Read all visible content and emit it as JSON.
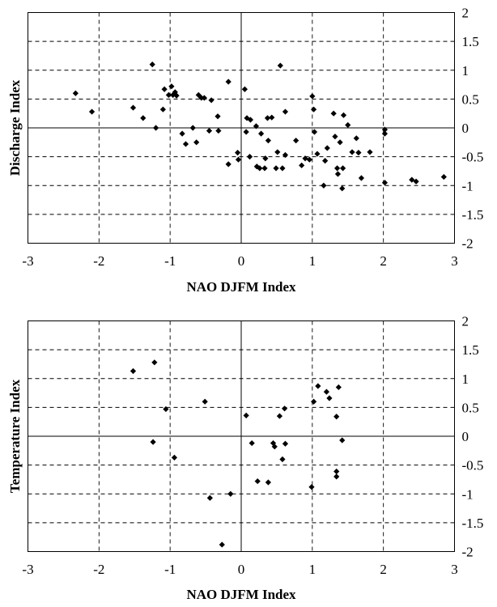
{
  "chart_data": [
    {
      "type": "scatter",
      "xlabel": "NAO DJFM Index",
      "ylabel": "Discharge Index",
      "xlim": [
        -3,
        3
      ],
      "ylim": [
        -2,
        2
      ],
      "xticks": [
        "-3",
        "-2",
        "-1",
        "0",
        "1",
        "2",
        "3"
      ],
      "yticks": [
        "2",
        "1.5",
        "1",
        "0.5",
        "0",
        "-0.5",
        "-1",
        "-1.5",
        "-2"
      ],
      "grid": "dashed",
      "marker": "diamond",
      "points": [
        [
          -2.33,
          0.6
        ],
        [
          -2.1,
          0.28
        ],
        [
          -1.52,
          0.35
        ],
        [
          -1.38,
          0.17
        ],
        [
          -1.25,
          1.1
        ],
        [
          -1.2,
          0.0
        ],
        [
          -1.1,
          0.32
        ],
        [
          -1.08,
          0.67
        ],
        [
          -1.02,
          0.57
        ],
        [
          -0.98,
          0.72
        ],
        [
          -0.96,
          0.57
        ],
        [
          -0.93,
          0.62
        ],
        [
          -0.91,
          0.56
        ],
        [
          -0.83,
          -0.1
        ],
        [
          -0.78,
          -0.28
        ],
        [
          -0.68,
          0.0
        ],
        [
          -0.63,
          -0.25
        ],
        [
          -0.6,
          0.57
        ],
        [
          -0.56,
          0.52
        ],
        [
          -0.52,
          0.52
        ],
        [
          -0.45,
          -0.05
        ],
        [
          -0.42,
          0.48
        ],
        [
          -0.33,
          0.2
        ],
        [
          -0.32,
          -0.05
        ],
        [
          -0.18,
          0.8
        ],
        [
          -0.18,
          -0.63
        ],
        [
          -0.05,
          -0.43
        ],
        [
          -0.04,
          -0.55
        ],
        [
          0.05,
          0.67
        ],
        [
          0.07,
          -0.07
        ],
        [
          0.08,
          0.17
        ],
        [
          0.12,
          -0.5
        ],
        [
          0.13,
          0.14
        ],
        [
          0.21,
          0.03
        ],
        [
          0.22,
          -0.67
        ],
        [
          0.26,
          -0.7
        ],
        [
          0.28,
          -0.1
        ],
        [
          0.33,
          -0.7
        ],
        [
          0.34,
          -0.53
        ],
        [
          0.37,
          0.17
        ],
        [
          0.38,
          -0.22
        ],
        [
          0.43,
          0.18
        ],
        [
          0.49,
          -0.7
        ],
        [
          0.51,
          -0.42
        ],
        [
          0.55,
          1.08
        ],
        [
          0.58,
          -0.7
        ],
        [
          0.62,
          -0.47
        ],
        [
          0.62,
          0.28
        ],
        [
          0.77,
          -0.22
        ],
        [
          0.85,
          -0.65
        ],
        [
          0.9,
          -0.53
        ],
        [
          0.96,
          -0.55
        ],
        [
          1.0,
          0.55
        ],
        [
          1.02,
          0.32
        ],
        [
          1.03,
          -0.07
        ],
        [
          1.07,
          -0.45
        ],
        [
          1.16,
          -1.0
        ],
        [
          1.18,
          -0.57
        ],
        [
          1.21,
          -0.35
        ],
        [
          1.3,
          0.25
        ],
        [
          1.32,
          -0.15
        ],
        [
          1.35,
          -0.7
        ],
        [
          1.36,
          -0.8
        ],
        [
          1.39,
          -0.25
        ],
        [
          1.42,
          -1.05
        ],
        [
          1.43,
          -0.7
        ],
        [
          1.44,
          0.22
        ],
        [
          1.5,
          0.05
        ],
        [
          1.56,
          -0.42
        ],
        [
          1.62,
          -0.18
        ],
        [
          1.65,
          -0.43
        ],
        [
          1.69,
          -0.87
        ],
        [
          1.81,
          -0.42
        ],
        [
          2.02,
          -0.03
        ],
        [
          2.02,
          -0.1
        ],
        [
          2.02,
          -0.95
        ],
        [
          2.4,
          -0.9
        ],
        [
          2.46,
          -0.93
        ],
        [
          2.85,
          -0.85
        ]
      ]
    },
    {
      "type": "scatter",
      "xlabel": "NAO DJFM Index",
      "ylabel": "Temperature Index",
      "xlim": [
        -3,
        3
      ],
      "ylim": [
        -2,
        2
      ],
      "xticks": [
        "-3",
        "-2",
        "-1",
        "0",
        "1",
        "2",
        "3"
      ],
      "yticks": [
        "2",
        "1.5",
        "1",
        "0.5",
        "0",
        "-0.5",
        "-1",
        "-1.5",
        "-2"
      ],
      "grid": "dashed",
      "marker": "diamond",
      "points": [
        [
          -1.52,
          1.13
        ],
        [
          -1.22,
          1.28
        ],
        [
          -1.06,
          0.47
        ],
        [
          -1.24,
          -0.1
        ],
        [
          -0.94,
          -0.37
        ],
        [
          -0.51,
          0.6
        ],
        [
          -0.44,
          -1.07
        ],
        [
          -0.27,
          -1.88
        ],
        [
          -0.15,
          -1.0
        ],
        [
          0.07,
          0.36
        ],
        [
          0.15,
          -0.12
        ],
        [
          0.23,
          -0.78
        ],
        [
          0.38,
          -0.8
        ],
        [
          0.45,
          -0.12
        ],
        [
          0.47,
          -0.18
        ],
        [
          0.54,
          0.35
        ],
        [
          0.58,
          -0.4
        ],
        [
          0.61,
          0.48
        ],
        [
          0.62,
          -0.13
        ],
        [
          0.99,
          -0.88
        ],
        [
          1.02,
          0.6
        ],
        [
          1.08,
          0.87
        ],
        [
          1.2,
          0.77
        ],
        [
          1.24,
          0.66
        ],
        [
          1.34,
          -0.61
        ],
        [
          1.34,
          -0.7
        ],
        [
          1.34,
          0.34
        ],
        [
          1.37,
          0.85
        ],
        [
          1.42,
          -0.07
        ]
      ]
    }
  ]
}
